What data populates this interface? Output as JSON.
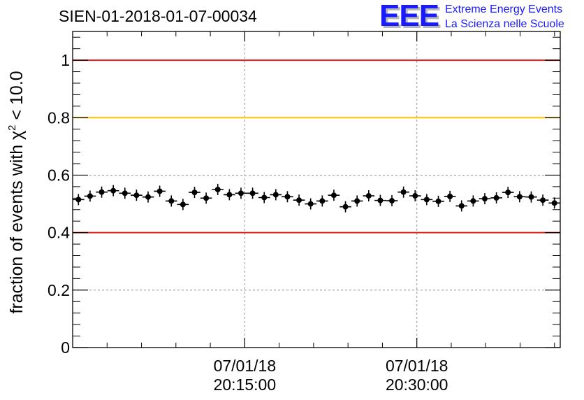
{
  "chart_data": {
    "type": "scatter",
    "title": "SIEN-01-2018-01-07-00034",
    "ylabel_pre": "fraction of events with ",
    "ylabel_sym": "χ",
    "ylabel_sup": "2",
    "ylabel_post": " < 10.0",
    "xlabel": "",
    "ylim": [
      0,
      1.1
    ],
    "yticks": [
      {
        "value": 0,
        "label": "0"
      },
      {
        "value": 0.2,
        "label": "0.2"
      },
      {
        "value": 0.4,
        "label": "0.4"
      },
      {
        "value": 0.6,
        "label": "0.6"
      },
      {
        "value": 0.8,
        "label": "0.8"
      },
      {
        "value": 1,
        "label": "1"
      }
    ],
    "xlim_seconds": [
      0,
      2550
    ],
    "xticks": [
      {
        "t": 900,
        "date": "07/01/18",
        "time": "20:15:00"
      },
      {
        "t": 1800,
        "date": "07/01/18",
        "time": "20:30:00"
      }
    ],
    "grid": true,
    "reference_lines": [
      {
        "y": 1.0,
        "color": "#e8201e"
      },
      {
        "y": 0.8,
        "color": "#ffc000"
      },
      {
        "y": 0.4,
        "color": "#e8201e"
      }
    ],
    "point_color": "#000000",
    "points": [
      0.515,
      0.527,
      0.541,
      0.546,
      0.537,
      0.53,
      0.524,
      0.544,
      0.51,
      0.498,
      0.54,
      0.52,
      0.55,
      0.532,
      0.537,
      0.537,
      0.522,
      0.532,
      0.525,
      0.513,
      0.5,
      0.51,
      0.53,
      0.49,
      0.51,
      0.528,
      0.512,
      0.511,
      0.541,
      0.528,
      0.515,
      0.509,
      0.526,
      0.493,
      0.51,
      0.518,
      0.521,
      0.54,
      0.525,
      0.524,
      0.513,
      0.503
    ]
  },
  "logo": {
    "mark": "EEE",
    "line1": "Extreme Energy Events",
    "line2": "La Scienza nelle Scuole"
  }
}
